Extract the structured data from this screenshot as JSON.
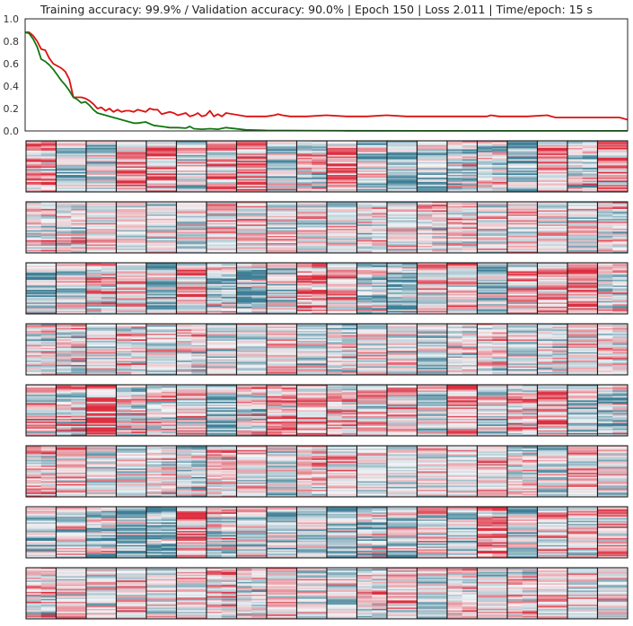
{
  "title": "Training accuracy: 99.9% / Validation accuracy: 90.0% | Epoch 150 | Loss 2.011 | Time/epoch: 15 s",
  "chart_data": {
    "type": "line",
    "title": "Training accuracy: 99.9% / Validation accuracy: 90.0% | Epoch 150 | Loss 2.011 | Time/epoch: 15 s",
    "xlabel": "",
    "ylabel": "",
    "xlim": [
      0,
      150
    ],
    "ylim": [
      0.0,
      1.0
    ],
    "yticks": [
      "0.0",
      "0.2",
      "0.4",
      "0.6",
      "0.8",
      "1.0"
    ],
    "grid": false,
    "legend": "none",
    "series": [
      {
        "color": "#dd1111",
        "x": [
          0,
          1,
          2,
          3,
          4,
          5,
          6,
          7,
          8,
          9,
          10,
          11,
          12,
          13,
          14,
          15,
          16,
          17,
          18,
          19,
          20,
          21,
          22,
          23,
          24,
          25,
          26,
          27,
          28,
          29,
          30,
          31,
          32,
          33,
          34,
          35,
          36,
          37,
          38,
          39,
          40,
          41,
          42,
          43,
          44,
          45,
          46,
          47,
          48,
          49,
          50,
          55,
          60,
          62,
          63,
          64,
          66,
          70,
          75,
          80,
          85,
          90,
          95,
          100,
          105,
          110,
          115,
          116,
          118,
          120,
          125,
          130,
          132,
          134,
          136,
          140,
          145,
          148,
          150
        ],
        "values": [
          0.88,
          0.88,
          0.85,
          0.8,
          0.73,
          0.72,
          0.65,
          0.6,
          0.58,
          0.56,
          0.53,
          0.46,
          0.3,
          0.3,
          0.3,
          0.29,
          0.27,
          0.24,
          0.2,
          0.21,
          0.18,
          0.2,
          0.17,
          0.19,
          0.17,
          0.18,
          0.18,
          0.17,
          0.19,
          0.18,
          0.17,
          0.2,
          0.19,
          0.19,
          0.15,
          0.16,
          0.17,
          0.16,
          0.14,
          0.15,
          0.16,
          0.13,
          0.14,
          0.16,
          0.13,
          0.14,
          0.18,
          0.13,
          0.15,
          0.13,
          0.16,
          0.13,
          0.13,
          0.14,
          0.15,
          0.14,
          0.13,
          0.13,
          0.14,
          0.13,
          0.13,
          0.14,
          0.13,
          0.13,
          0.13,
          0.13,
          0.13,
          0.14,
          0.13,
          0.13,
          0.13,
          0.14,
          0.12,
          0.12,
          0.12,
          0.12,
          0.12,
          0.12,
          0.1
        ]
      },
      {
        "color": "#117711",
        "x": [
          0,
          1,
          2,
          3,
          4,
          5,
          6,
          7,
          8,
          9,
          10,
          11,
          12,
          13,
          14,
          15,
          16,
          17,
          18,
          19,
          20,
          21,
          22,
          23,
          24,
          25,
          26,
          27,
          28,
          30,
          32,
          34,
          36,
          38,
          40,
          41,
          42,
          44,
          46,
          48,
          50,
          55,
          60,
          70,
          80,
          100,
          120,
          150
        ],
        "values": [
          0.88,
          0.87,
          0.82,
          0.75,
          0.64,
          0.62,
          0.59,
          0.55,
          0.5,
          0.45,
          0.41,
          0.36,
          0.3,
          0.28,
          0.25,
          0.26,
          0.23,
          0.19,
          0.16,
          0.15,
          0.14,
          0.13,
          0.12,
          0.11,
          0.1,
          0.09,
          0.08,
          0.07,
          0.07,
          0.08,
          0.05,
          0.04,
          0.03,
          0.03,
          0.025,
          0.04,
          0.02,
          0.015,
          0.02,
          0.015,
          0.03,
          0.01,
          0.005,
          0.003,
          0.002,
          0.001,
          0.001,
          0.001
        ]
      }
    ],
    "heatmap_panels": {
      "rows": 8,
      "columns": 20,
      "colormap": [
        "#3e7f96",
        "#f3f5f7",
        "#dd2e3f"
      ],
      "row_styles": [
        "horizontal-bands",
        "fine-warm",
        "horizontal-bands",
        "fine-warm",
        "horizontal-bands",
        "fine-warm",
        "horizontal-bands",
        "fine-warm"
      ]
    }
  }
}
